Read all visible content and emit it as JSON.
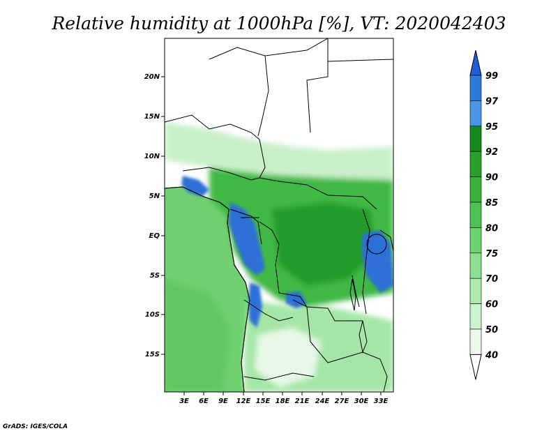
{
  "title": "Relative humidity at 1000hPa [%], VT: 2020042403",
  "credit": "GrADS: IGES/COLA",
  "map": {
    "lat_ticks": [
      "20N",
      "15N",
      "10N",
      "5N",
      "EQ",
      "5S",
      "10S",
      "15S"
    ],
    "lon_ticks": [
      "3E",
      "6E",
      "9E",
      "12E",
      "15E",
      "18E",
      "21E",
      "24E",
      "27E",
      "30E",
      "33E"
    ]
  },
  "colorbar": {
    "levels": [
      "99",
      "97",
      "95",
      "92",
      "90",
      "85",
      "80",
      "75",
      "70",
      "60",
      "50",
      "40"
    ],
    "colors": [
      "#1e5fd8",
      "#2b7ae0",
      "#4896ea",
      "#138a1b",
      "#27a12c",
      "#38b23c",
      "#4cc350",
      "#6ad46d",
      "#8ce08e",
      "#acebad",
      "#ccf4cc",
      "#e9fae9",
      "#ffffff"
    ]
  },
  "legend_palette": {
    "land": "#5fc85f",
    "sea": "#7ad67a",
    "humid_blue": "#2f6fd6",
    "dry_white": "#ffffff",
    "border": "#000000"
  }
}
